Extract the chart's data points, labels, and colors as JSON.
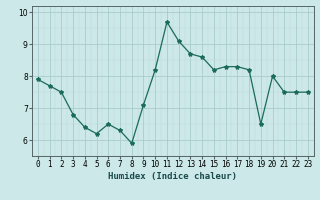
{
  "x": [
    0,
    1,
    2,
    3,
    4,
    5,
    6,
    7,
    8,
    9,
    10,
    11,
    12,
    13,
    14,
    15,
    16,
    17,
    18,
    19,
    20,
    21,
    22,
    23
  ],
  "y": [
    7.9,
    7.7,
    7.5,
    6.8,
    6.4,
    6.2,
    6.5,
    6.3,
    5.9,
    7.1,
    8.2,
    9.7,
    9.1,
    8.7,
    8.6,
    8.2,
    8.3,
    8.3,
    8.2,
    6.5,
    8.0,
    7.5,
    7.5,
    7.5
  ],
  "line_color": "#1a6b5a",
  "marker": "*",
  "marker_size": 3,
  "bg_color": "#cce8e8",
  "grid_color_major": "#aacccc",
  "grid_color_minor": "#bbd8d8",
  "xlabel": "Humidex (Indice chaleur)",
  "xlim": [
    -0.5,
    23.5
  ],
  "ylim": [
    5.5,
    10.2
  ],
  "yticks": [
    6,
    7,
    8,
    9,
    10
  ],
  "xtick_labels": [
    "0",
    "1",
    "2",
    "3",
    "4",
    "5",
    "6",
    "7",
    "8",
    "9",
    "10",
    "11",
    "12",
    "13",
    "14",
    "15",
    "16",
    "17",
    "18",
    "19",
    "20",
    "21",
    "22",
    "23"
  ],
  "xlabel_fontsize": 6.5,
  "tick_fontsize": 5.5
}
